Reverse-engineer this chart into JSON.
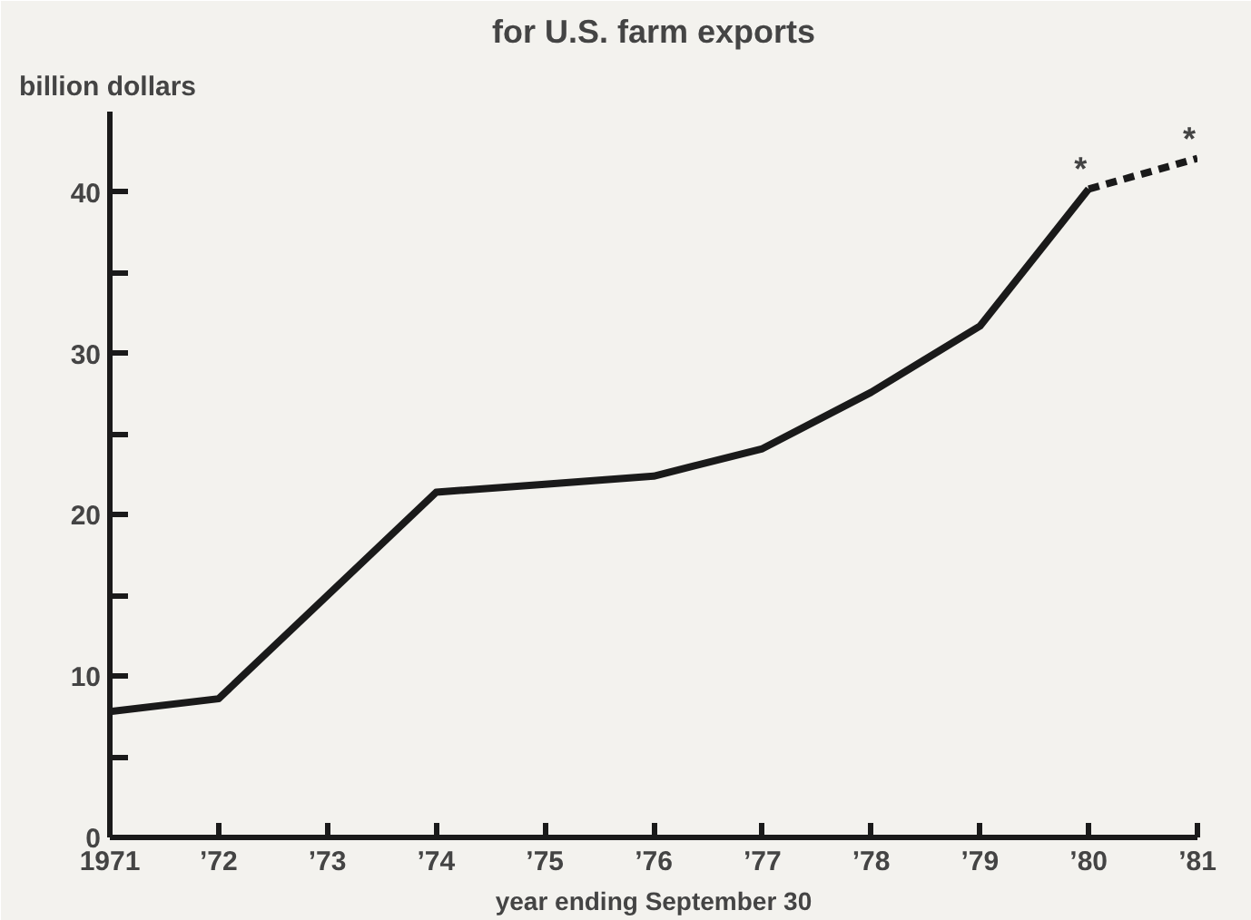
{
  "chart_data": {
    "type": "line",
    "title": "for U.S. farm exports",
    "ylabel": "billion dollars",
    "xlabel": "year ending September 30",
    "xlim": [
      1971,
      1981
    ],
    "xticks": [
      {
        "value": 1971,
        "label": "1971"
      },
      {
        "value": 1972,
        "label": "’72"
      },
      {
        "value": 1973,
        "label": "’73"
      },
      {
        "value": 1974,
        "label": "’74"
      },
      {
        "value": 1975,
        "label": "’75"
      },
      {
        "value": 1976,
        "label": "’76"
      },
      {
        "value": 1977,
        "label": "’77"
      },
      {
        "value": 1978,
        "label": "’78"
      },
      {
        "value": 1979,
        "label": "’79"
      },
      {
        "value": 1980,
        "label": "’80"
      },
      {
        "value": 1981,
        "label": "’81"
      }
    ],
    "ylim": [
      0,
      45
    ],
    "yticks": [
      0,
      {
        "value": 5,
        "label": null
      },
      10,
      {
        "value": 15,
        "label": null
      },
      20,
      {
        "value": 25,
        "label": null
      },
      30,
      {
        "value": 35,
        "label": null
      },
      40
    ],
    "grid": false,
    "marker": "none",
    "series": [
      {
        "color": "#1a1a1a",
        "line_style": "solid",
        "x": [
          1971,
          1972,
          1973,
          1974,
          1975,
          1976,
          1977,
          1978,
          1979,
          1980
        ],
        "values": [
          7.8,
          8.6,
          15.0,
          21.4,
          21.9,
          22.4,
          24.1,
          27.6,
          31.7,
          40.2
        ]
      },
      {
        "color": "#1a1a1a",
        "line_style": "dashed",
        "x": [
          1980,
          1981
        ],
        "values": [
          40.2,
          42.1
        ]
      }
    ],
    "annotations": [
      {
        "text": "*",
        "x": 1980,
        "y": 40.2
      },
      {
        "text": "*",
        "x": 1981,
        "y": 42.1
      }
    ]
  }
}
